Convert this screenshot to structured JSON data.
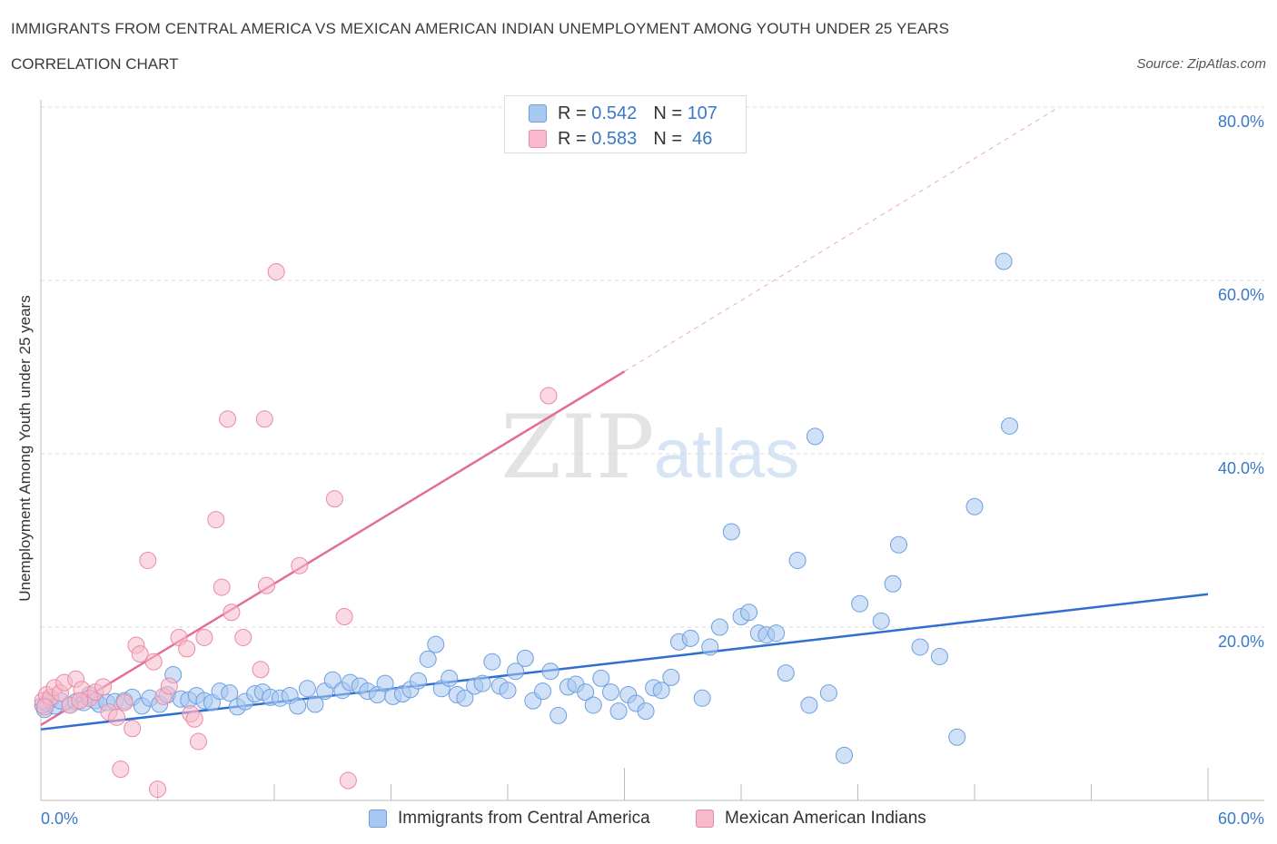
{
  "header": {
    "title": "IMMIGRANTS FROM CENTRAL AMERICA VS MEXICAN AMERICAN INDIAN UNEMPLOYMENT AMONG YOUTH UNDER 25 YEARS",
    "subtitle": "CORRELATION CHART",
    "source": "Source: ZipAtlas.com"
  },
  "watermark": {
    "zip": "ZIP",
    "atlas": "atlas"
  },
  "legend": {
    "rows": [
      {
        "r_label": "R = ",
        "r_value": "0.542",
        "n_label": "N = ",
        "n_value": "107",
        "color": "#a9c8f0",
        "stroke": "#6d9fe0"
      },
      {
        "r_label": "R = ",
        "r_value": "0.583",
        "n_label": "N = ",
        "n_value": " 46",
        "color": "#f7b9cb",
        "stroke": "#e88aa6"
      }
    ]
  },
  "chart_data": {
    "type": "scatter",
    "title": "IMMIGRANTS FROM CENTRAL AMERICA VS MEXICAN AMERICAN INDIAN UNEMPLOYMENT AMONG YOUTH UNDER 25 YEARS",
    "xlabel": "",
    "ylabel": "Unemployment Among Youth under 25 years",
    "xlim": [
      0,
      60
    ],
    "ylim": [
      0,
      80
    ],
    "x_tick_labels": [
      "0.0%",
      "60.0%"
    ],
    "y_tick_labels": [
      "20.0%",
      "40.0%",
      "60.0%",
      "80.0%"
    ],
    "y_ticks": [
      20,
      40,
      60,
      80
    ],
    "grid": "horizontal dashed",
    "legend_position": "bottom-center",
    "series": [
      {
        "name": "Immigrants from Central America",
        "color": "#a9c8f0",
        "stroke": "#6d9fe0",
        "line_color": "#2e6fd0",
        "trend": {
          "x": [
            0,
            60
          ],
          "y": [
            8.2,
            23.8
          ]
        },
        "points": [
          [
            0.2,
            10.5
          ],
          [
            0.3,
            11.2
          ],
          [
            0.5,
            11.6
          ],
          [
            0.7,
            10.9
          ],
          [
            1.0,
            11.5
          ],
          [
            1.5,
            11.0
          ],
          [
            1.8,
            11.4
          ],
          [
            2.2,
            11.3
          ],
          [
            2.5,
            12.2
          ],
          [
            2.8,
            11.5
          ],
          [
            3.0,
            11.1
          ],
          [
            3.4,
            11.3
          ],
          [
            3.8,
            11.4
          ],
          [
            4.3,
            11.5
          ],
          [
            4.7,
            11.9
          ],
          [
            5.2,
            10.9
          ],
          [
            5.6,
            11.8
          ],
          [
            6.1,
            11.1
          ],
          [
            6.5,
            12.2
          ],
          [
            6.8,
            14.5
          ],
          [
            7.2,
            11.7
          ],
          [
            7.6,
            11.6
          ],
          [
            8.0,
            12.1
          ],
          [
            8.4,
            11.5
          ],
          [
            8.8,
            11.3
          ],
          [
            9.2,
            12.6
          ],
          [
            9.7,
            12.4
          ],
          [
            10.1,
            10.8
          ],
          [
            10.5,
            11.4
          ],
          [
            11.0,
            12.3
          ],
          [
            11.4,
            12.5
          ],
          [
            11.8,
            11.9
          ],
          [
            12.3,
            11.8
          ],
          [
            12.8,
            12.1
          ],
          [
            13.2,
            10.9
          ],
          [
            13.7,
            12.9
          ],
          [
            14.1,
            11.1
          ],
          [
            14.6,
            12.6
          ],
          [
            15.0,
            13.9
          ],
          [
            15.5,
            12.7
          ],
          [
            15.9,
            13.6
          ],
          [
            16.4,
            13.2
          ],
          [
            16.8,
            12.6
          ],
          [
            17.3,
            12.2
          ],
          [
            17.7,
            13.5
          ],
          [
            18.1,
            12.0
          ],
          [
            18.6,
            12.3
          ],
          [
            19.0,
            12.8
          ],
          [
            19.4,
            13.8
          ],
          [
            19.9,
            16.3
          ],
          [
            20.3,
            18.0
          ],
          [
            20.6,
            12.9
          ],
          [
            21.0,
            14.1
          ],
          [
            21.4,
            12.2
          ],
          [
            21.8,
            11.8
          ],
          [
            22.3,
            13.2
          ],
          [
            22.7,
            13.5
          ],
          [
            23.2,
            16.0
          ],
          [
            23.6,
            13.2
          ],
          [
            24.0,
            12.7
          ],
          [
            24.4,
            14.9
          ],
          [
            24.9,
            16.4
          ],
          [
            25.3,
            11.5
          ],
          [
            25.8,
            12.6
          ],
          [
            26.2,
            14.9
          ],
          [
            26.6,
            9.8
          ],
          [
            27.1,
            13.1
          ],
          [
            27.5,
            13.4
          ],
          [
            28.0,
            12.5
          ],
          [
            28.4,
            11.0
          ],
          [
            28.8,
            14.1
          ],
          [
            29.3,
            12.5
          ],
          [
            29.7,
            10.3
          ],
          [
            30.2,
            12.2
          ],
          [
            30.6,
            11.2
          ],
          [
            31.1,
            10.3
          ],
          [
            31.5,
            13.0
          ],
          [
            31.9,
            12.7
          ],
          [
            32.4,
            14.2
          ],
          [
            32.8,
            18.3
          ],
          [
            33.4,
            18.7
          ],
          [
            34.0,
            11.8
          ],
          [
            34.4,
            17.7
          ],
          [
            34.9,
            20.0
          ],
          [
            35.5,
            31.0
          ],
          [
            36.0,
            21.2
          ],
          [
            36.4,
            21.7
          ],
          [
            36.9,
            19.3
          ],
          [
            37.3,
            19.1
          ],
          [
            37.8,
            19.3
          ],
          [
            38.3,
            14.7
          ],
          [
            38.9,
            27.7
          ],
          [
            39.5,
            11.0
          ],
          [
            39.8,
            42.0
          ],
          [
            40.5,
            12.4
          ],
          [
            41.3,
            5.2
          ],
          [
            42.1,
            22.7
          ],
          [
            43.2,
            20.7
          ],
          [
            43.8,
            25.0
          ],
          [
            44.1,
            29.5
          ],
          [
            45.2,
            17.7
          ],
          [
            46.2,
            16.6
          ],
          [
            47.1,
            7.3
          ],
          [
            48.0,
            33.9
          ],
          [
            49.5,
            62.2
          ],
          [
            49.8,
            43.2
          ],
          [
            0.1,
            11.0
          ]
        ]
      },
      {
        "name": "Mexican American Indians",
        "color": "#f7b9cb",
        "stroke": "#e88aa6",
        "line_color": "#e56d95",
        "trend": {
          "x": [
            0,
            30
          ],
          "y": [
            8.7,
            49.5
          ]
        },
        "trend_ext": {
          "x": [
            30,
            52.2
          ],
          "y": [
            49.5,
            79.8
          ]
        },
        "points": [
          [
            0.1,
            11.5
          ],
          [
            0.3,
            12.2
          ],
          [
            0.5,
            11.9
          ],
          [
            0.7,
            13.0
          ],
          [
            1.0,
            12.4
          ],
          [
            1.2,
            13.6
          ],
          [
            1.5,
            11.0
          ],
          [
            1.8,
            14.0
          ],
          [
            2.1,
            12.8
          ],
          [
            2.5,
            11.8
          ],
          [
            2.8,
            12.5
          ],
          [
            3.2,
            13.1
          ],
          [
            3.5,
            10.2
          ],
          [
            3.9,
            9.6
          ],
          [
            4.1,
            3.6
          ],
          [
            4.3,
            11.3
          ],
          [
            4.7,
            8.3
          ],
          [
            4.9,
            17.9
          ],
          [
            5.1,
            16.9
          ],
          [
            5.5,
            27.7
          ],
          [
            5.8,
            16.0
          ],
          [
            6.0,
            1.3
          ],
          [
            6.3,
            12.0
          ],
          [
            6.6,
            13.2
          ],
          [
            7.1,
            18.8
          ],
          [
            7.5,
            17.5
          ],
          [
            7.7,
            10.0
          ],
          [
            7.9,
            9.4
          ],
          [
            8.1,
            6.8
          ],
          [
            8.4,
            18.8
          ],
          [
            9.0,
            32.4
          ],
          [
            9.3,
            24.6
          ],
          [
            9.6,
            44.0
          ],
          [
            9.8,
            21.7
          ],
          [
            10.4,
            18.8
          ],
          [
            11.3,
            15.1
          ],
          [
            11.5,
            44.0
          ],
          [
            11.6,
            24.8
          ],
          [
            12.1,
            61.0
          ],
          [
            13.3,
            27.1
          ],
          [
            15.1,
            34.8
          ],
          [
            15.6,
            21.2
          ],
          [
            15.8,
            2.3
          ],
          [
            26.1,
            46.7
          ],
          [
            0.2,
            10.8
          ],
          [
            2.0,
            11.5
          ]
        ]
      }
    ]
  }
}
